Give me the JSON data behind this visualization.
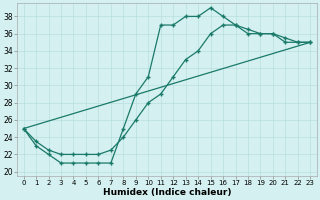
{
  "xlabel": "Humidex (Indice chaleur)",
  "bg_color": "#d4f0f0",
  "line_color": "#1a7a6a",
  "grid_color": "#b8dede",
  "xlim": [
    -0.5,
    23.5
  ],
  "ylim": [
    19.5,
    39.5
  ],
  "xticks": [
    0,
    1,
    2,
    3,
    4,
    5,
    6,
    7,
    8,
    9,
    10,
    11,
    12,
    13,
    14,
    15,
    16,
    17,
    18,
    19,
    20,
    21,
    22,
    23
  ],
  "yticks": [
    20,
    22,
    24,
    26,
    28,
    30,
    32,
    34,
    36,
    38
  ],
  "curve1_x": [
    0,
    1,
    2,
    3,
    4,
    5,
    6,
    7,
    8,
    9,
    10,
    11,
    12,
    13,
    14,
    15,
    16,
    17,
    18,
    19,
    20,
    21,
    22,
    23
  ],
  "curve1_y": [
    25,
    23,
    22,
    21,
    21,
    21,
    21,
    21,
    25,
    29,
    31,
    37,
    37,
    38,
    38,
    39,
    38,
    37,
    36,
    36,
    36,
    35,
    35,
    35
  ],
  "curve2_x": [
    0,
    1,
    2,
    3,
    4,
    5,
    6,
    7,
    8,
    9,
    10,
    11,
    12,
    13,
    14,
    15,
    16,
    17,
    18,
    19,
    20,
    21,
    22,
    23
  ],
  "curve2_y": [
    25,
    23.5,
    22.5,
    22,
    22,
    22,
    22,
    22.5,
    24,
    26,
    28,
    29,
    31,
    33,
    34,
    36,
    37,
    37,
    36.5,
    36,
    36,
    35.5,
    35,
    35
  ],
  "curve3_x": [
    0,
    23
  ],
  "curve3_y": [
    25,
    35
  ]
}
